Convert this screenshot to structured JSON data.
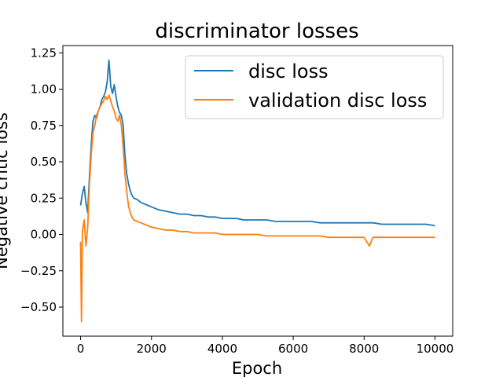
{
  "chart_data": {
    "type": "line",
    "title": "discriminator losses",
    "xlabel": "Epoch",
    "ylabel": "Negative critic loss",
    "xlim": [
      -500,
      10500
    ],
    "ylim": [
      -0.7,
      1.3
    ],
    "x_ticks": [
      0,
      2000,
      4000,
      6000,
      8000,
      10000
    ],
    "x_tick_labels": [
      "0",
      "2000",
      "4000",
      "6000",
      "8000",
      "10000"
    ],
    "y_ticks": [
      -0.5,
      -0.25,
      0.0,
      0.25,
      0.5,
      0.75,
      1.0,
      1.25
    ],
    "y_tick_labels": [
      "−0.50",
      "−0.25",
      "0.00",
      "0.25",
      "0.50",
      "0.75",
      "1.00",
      "1.25"
    ],
    "grid": false,
    "legend_position": "top-right",
    "series": [
      {
        "name": "disc loss",
        "color": "#1f77b4",
        "x": [
          0,
          50,
          100,
          150,
          200,
          250,
          300,
          350,
          400,
          450,
          500,
          550,
          600,
          650,
          700,
          750,
          800,
          850,
          900,
          950,
          1000,
          1050,
          1100,
          1150,
          1200,
          1250,
          1300,
          1350,
          1400,
          1450,
          1500,
          1600,
          1700,
          1800,
          1900,
          2000,
          2200,
          2400,
          2600,
          2800,
          3000,
          3200,
          3400,
          3600,
          3800,
          4000,
          4200,
          4400,
          4600,
          4800,
          5000,
          5250,
          5500,
          5750,
          6000,
          6250,
          6500,
          6750,
          7000,
          7250,
          7500,
          7750,
          8000,
          8250,
          8500,
          8750,
          9000,
          9250,
          9500,
          9750,
          10000
        ],
        "y": [
          0.2,
          0.28,
          0.33,
          0.22,
          0.15,
          0.4,
          0.62,
          0.78,
          0.82,
          0.8,
          0.85,
          0.88,
          0.93,
          0.95,
          0.98,
          1.05,
          1.2,
          1.02,
          0.97,
          1.03,
          0.95,
          0.88,
          0.84,
          0.82,
          0.75,
          0.55,
          0.42,
          0.35,
          0.3,
          0.27,
          0.25,
          0.24,
          0.22,
          0.21,
          0.2,
          0.19,
          0.17,
          0.16,
          0.15,
          0.14,
          0.14,
          0.13,
          0.13,
          0.12,
          0.12,
          0.11,
          0.11,
          0.11,
          0.1,
          0.1,
          0.1,
          0.1,
          0.09,
          0.09,
          0.09,
          0.09,
          0.09,
          0.08,
          0.08,
          0.08,
          0.08,
          0.08,
          0.08,
          0.08,
          0.07,
          0.07,
          0.07,
          0.07,
          0.07,
          0.07,
          0.06
        ]
      },
      {
        "name": "validation disc loss",
        "color": "#ff7f0e",
        "x": [
          0,
          25,
          50,
          100,
          150,
          200,
          250,
          300,
          350,
          400,
          450,
          500,
          550,
          600,
          650,
          700,
          750,
          800,
          850,
          900,
          950,
          1000,
          1050,
          1100,
          1150,
          1200,
          1250,
          1300,
          1350,
          1400,
          1450,
          1500,
          1600,
          1700,
          1800,
          1900,
          2000,
          2200,
          2400,
          2600,
          2800,
          3000,
          3200,
          3400,
          3600,
          3800,
          4000,
          4200,
          4400,
          4600,
          4800,
          5000,
          5250,
          5500,
          5750,
          6000,
          6250,
          6500,
          6750,
          7000,
          7250,
          7500,
          7750,
          8000,
          8150,
          8250,
          8500,
          8750,
          9000,
          9250,
          9500,
          9750,
          10000
        ],
        "y": [
          -0.05,
          -0.6,
          0.02,
          0.1,
          -0.08,
          0.05,
          0.35,
          0.55,
          0.7,
          0.75,
          0.82,
          0.85,
          0.88,
          0.9,
          0.92,
          0.95,
          0.93,
          0.96,
          0.92,
          0.88,
          0.85,
          0.8,
          0.78,
          0.82,
          0.75,
          0.6,
          0.42,
          0.3,
          0.2,
          0.15,
          0.12,
          0.1,
          0.09,
          0.08,
          0.07,
          0.06,
          0.05,
          0.04,
          0.03,
          0.03,
          0.02,
          0.02,
          0.01,
          0.01,
          0.01,
          0.01,
          0.0,
          0.0,
          0.0,
          0.0,
          0.0,
          0.0,
          -0.01,
          -0.01,
          -0.01,
          -0.01,
          -0.01,
          -0.01,
          -0.01,
          -0.02,
          -0.02,
          -0.02,
          -0.02,
          -0.02,
          -0.08,
          -0.02,
          -0.02,
          -0.02,
          -0.02,
          -0.02,
          -0.02,
          -0.02,
          -0.02
        ]
      }
    ]
  }
}
